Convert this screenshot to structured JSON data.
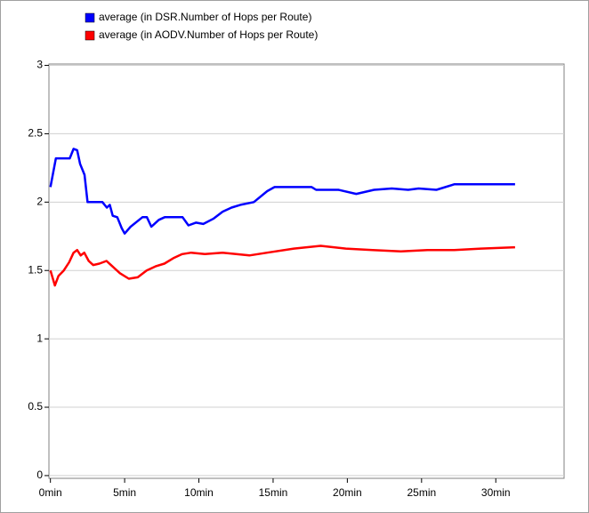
{
  "chart_data": {
    "type": "line",
    "series": [
      {
        "name": "average (in DSR.Number of Hops per Route)",
        "color": "#0000ff",
        "x": [
          0,
          0.37,
          1.3,
          1.56,
          1.8,
          2.0,
          2.3,
          2.5,
          3.5,
          3.8,
          4.0,
          4.2,
          4.5,
          4.8,
          5.0,
          5.4,
          6.2,
          6.5,
          6.8,
          7.3,
          7.7,
          8.9,
          9.3,
          9.8,
          10.3,
          11.0,
          11.6,
          12.2,
          12.8,
          13.7,
          14.6,
          15.1,
          16.3,
          17.6,
          17.9,
          19.4,
          20.6,
          21.8,
          23.0,
          24.1,
          24.8,
          26.0,
          27.2,
          28.4,
          31.3
        ],
        "values": [
          2.11,
          2.32,
          2.32,
          2.39,
          2.38,
          2.28,
          2.2,
          2.0,
          2.0,
          1.96,
          1.98,
          1.9,
          1.89,
          1.81,
          1.77,
          1.82,
          1.89,
          1.89,
          1.82,
          1.87,
          1.89,
          1.89,
          1.83,
          1.85,
          1.84,
          1.88,
          1.93,
          1.96,
          1.98,
          2.0,
          2.08,
          2.11,
          2.11,
          2.11,
          2.09,
          2.09,
          2.06,
          2.09,
          2.1,
          2.09,
          2.1,
          2.09,
          2.13,
          2.13,
          2.13
        ]
      },
      {
        "name": "average (in AODV.Number of Hops per Route)",
        "color": "#ff0000",
        "x": [
          0,
          0.3,
          0.54,
          0.9,
          1.26,
          1.56,
          1.8,
          2.04,
          2.28,
          2.58,
          2.88,
          3.3,
          3.78,
          4.08,
          4.68,
          5.28,
          5.88,
          6.48,
          7.08,
          7.68,
          8.28,
          8.88,
          9.48,
          10.4,
          11.6,
          13.4,
          14.6,
          16.4,
          18.2,
          19.9,
          21.7,
          23.6,
          25.4,
          27.2,
          29.0,
          31.3
        ],
        "values": [
          1.5,
          1.39,
          1.46,
          1.5,
          1.56,
          1.63,
          1.65,
          1.61,
          1.63,
          1.57,
          1.54,
          1.55,
          1.57,
          1.54,
          1.48,
          1.44,
          1.45,
          1.5,
          1.53,
          1.55,
          1.59,
          1.62,
          1.63,
          1.62,
          1.63,
          1.61,
          1.63,
          1.66,
          1.68,
          1.66,
          1.65,
          1.64,
          1.65,
          1.65,
          1.66,
          1.67
        ]
      }
    ],
    "xlim": [
      -0.1,
      34.6
    ],
    "xticks": [
      {
        "value": 0,
        "label": "0min"
      },
      {
        "value": 5,
        "label": "5min"
      },
      {
        "value": 10,
        "label": "10min"
      },
      {
        "value": 15,
        "label": "15min"
      },
      {
        "value": 20,
        "label": "20min"
      },
      {
        "value": 25,
        "label": "25min"
      },
      {
        "value": 30,
        "label": "30min"
      }
    ],
    "ylim": [
      -0.02,
      3.01
    ],
    "yticks": [
      0,
      0.5,
      1,
      1.5,
      2,
      2.5,
      3
    ],
    "grid": true
  }
}
